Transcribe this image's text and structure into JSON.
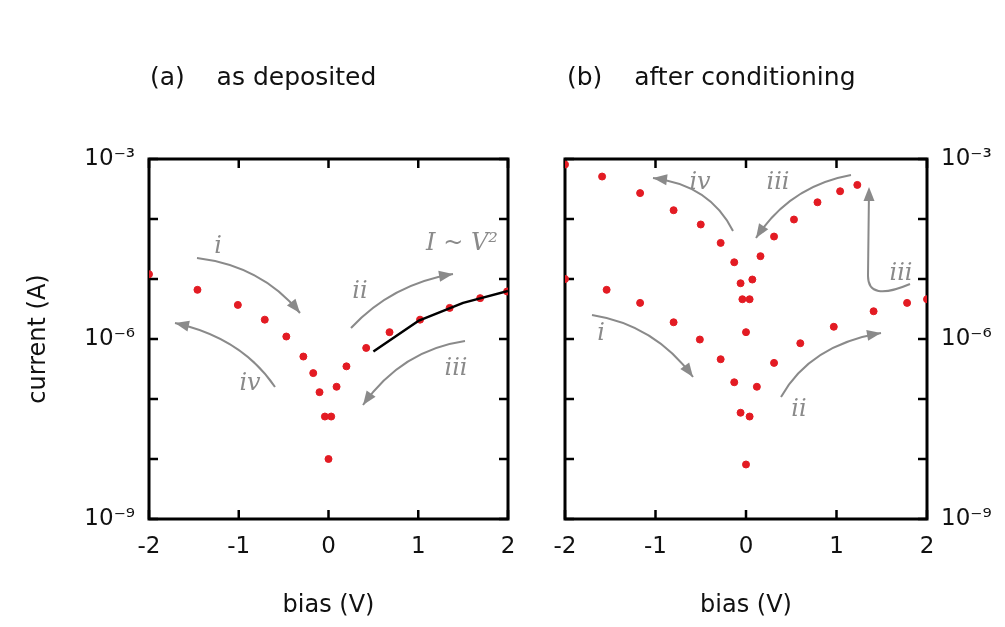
{
  "chart_data": [
    {
      "type": "scatter",
      "title": "(a)    as deposited",
      "xlabel": "bias (V)",
      "ylabel": "current (A)",
      "log": true,
      "legend": false,
      "xlim": [
        -2,
        2
      ],
      "xticks": [
        -2,
        -1,
        0,
        1,
        2
      ],
      "ylim": [
        1e-09,
        0.001
      ],
      "yticks": [
        {
          "value": 1e-09,
          "label": "10⁻⁹"
        },
        {
          "value": 1e-08,
          "label": null
        },
        {
          "value": 1e-07,
          "label": null
        },
        {
          "value": 1e-06,
          "label": "10⁻⁶"
        },
        {
          "value": 1e-05,
          "label": null
        },
        {
          "value": 0.0001,
          "label": null
        },
        {
          "value": 0.001,
          "label": "10⁻³"
        }
      ],
      "series": [
        {
          "color": "#e31b23",
          "marker": "circle",
          "x": [
            -2,
            -1.46,
            -1.01,
            -0.71,
            -0.47,
            -0.28,
            -0.17,
            -0.1,
            -0.04,
            0,
            0.03,
            0.09,
            0.2,
            0.42,
            0.68,
            1.02,
            1.35,
            1.69,
            1.99
          ],
          "values": [
            1.2e-05,
            6.6e-06,
            3.7e-06,
            2.1e-06,
            1.1e-06,
            5.1e-07,
            2.7e-07,
            1.3e-07,
            5.1e-08,
            1e-08,
            5.1e-08,
            1.6e-07,
            3.5e-07,
            7.1e-07,
            1.3e-06,
            2.1e-06,
            3.3e-06,
            4.8e-06,
            6.2e-06
          ]
        },
        {
          "type": "line",
          "color": "#000000",
          "x": [
            0.5,
            1,
            1.5,
            2
          ],
          "values": [
            6.2e-07,
            2e-06,
            4e-06,
            6.3e-06
          ]
        }
      ],
      "annotations": [
        "i",
        "ii",
        "iii",
        "iv",
        "I ~ V²"
      ]
    },
    {
      "type": "scatter",
      "title": "(b)    after conditioning",
      "xlabel": "bias (V)",
      "marker": "circle",
      "log": "y2",
      "legend": false,
      "xlim": [
        -2,
        2
      ],
      "xticks": [
        -2,
        -1,
        0,
        1,
        2
      ],
      "y2lim": [
        1e-09,
        0.001
      ],
      "y2ticks": [
        {
          "value": 1e-09,
          "label": "10⁻⁹"
        },
        {
          "value": 1e-08,
          "label": null
        },
        {
          "value": 1e-07,
          "label": null
        },
        {
          "value": 1e-06,
          "label": "10⁻⁶"
        },
        {
          "value": 1e-05,
          "label": null
        },
        {
          "value": 0.0001,
          "label": null
        },
        {
          "value": 0.001,
          "label": "10⁻³"
        }
      ],
      "series": [
        {
          "color": "#e31b23",
          "axis": "y2",
          "x": [
            -2,
            -1.59,
            -1.17,
            -0.8,
            -0.5,
            -0.28,
            -0.13,
            -0.06,
            -0.04,
            0,
            0.04,
            0.07,
            0.16,
            0.31,
            0.53,
            0.79,
            1.04,
            1.23
          ],
          "values": [
            0.00081,
            0.00051,
            0.00027,
            0.00014,
            8.1e-05,
            4e-05,
            1.9e-05,
            8.5e-06,
            4.6e-06,
            1.3e-06,
            4.6e-06,
            9.8e-06,
            2.4e-05,
            5.1e-05,
            9.8e-05,
            0.00019,
            0.00029,
            0.00037
          ]
        },
        {
          "color": "#e31b23",
          "axis": "y2",
          "x": [
            -2,
            -1.54,
            -1.17,
            -0.8,
            -0.51,
            -0.28,
            -0.13,
            -0.06,
            0,
            0.04,
            0.12,
            0.31,
            0.6,
            0.97,
            1.41,
            1.78,
            2
          ],
          "values": [
            1e-05,
            6.6e-06,
            4e-06,
            1.9e-06,
            9.8e-07,
            4.6e-07,
            1.9e-07,
            5.9e-08,
            8.1e-09,
            5.1e-08,
            1.6e-07,
            4e-07,
            8.5e-07,
            1.6e-06,
            2.9e-06,
            4e-06,
            4.6e-06
          ]
        }
      ],
      "annotations": [
        "iv",
        "iii",
        "iii",
        "i",
        "ii"
      ]
    }
  ]
}
